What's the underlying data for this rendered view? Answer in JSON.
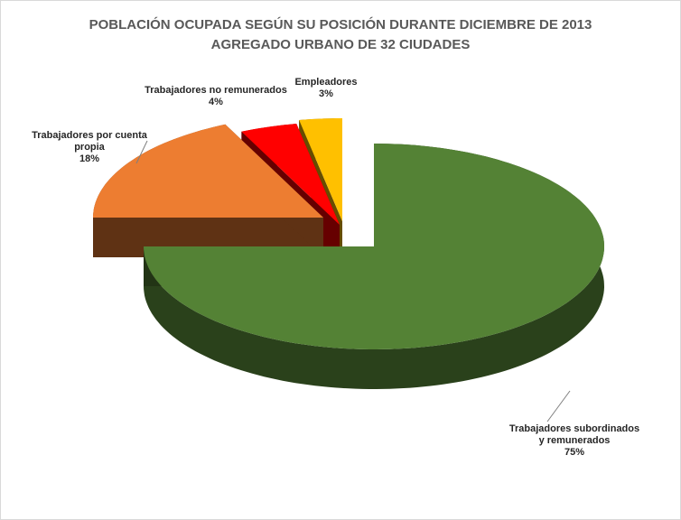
{
  "chart_data": {
    "type": "pie",
    "title": "POBLACIÓN OCUPADA SEGÚN SU POSICIÓN DURANTE DICIEMBRE DE 2013",
    "subtitle": "AGREGADO URBANO DE 32 CIUDADES",
    "categories": [
      "Trabajadores subordinados y remunerados",
      "Trabajadores por cuenta propia",
      "Trabajadores no remunerados",
      "Empleadores"
    ],
    "values": [
      75,
      18,
      4,
      3
    ],
    "value_labels": [
      "75%",
      "18%",
      "4%",
      "3%"
    ],
    "colors": [
      "#548235",
      "#ed7d31",
      "#ff0000",
      "#ffc000"
    ]
  }
}
